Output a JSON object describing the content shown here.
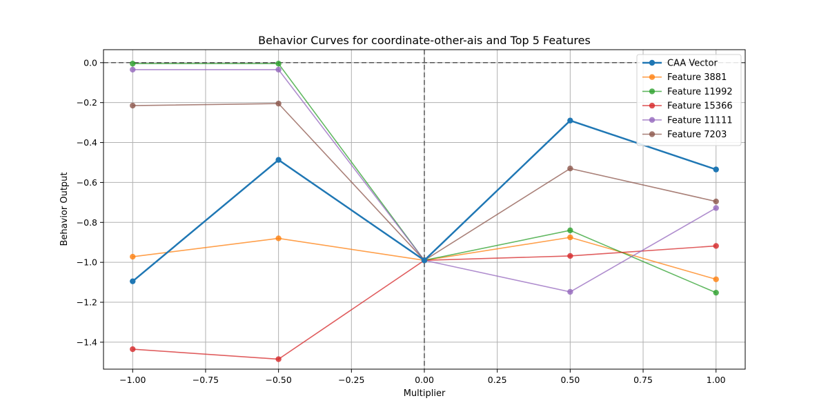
{
  "chart_data": {
    "type": "line",
    "title": "Behavior Curves for coordinate-other-ais and Top 5 Features",
    "xlabel": "Multiplier",
    "ylabel": "Behavior Output",
    "x": [
      -1.0,
      -0.5,
      0.0,
      0.5,
      1.0
    ],
    "xlim": [
      -1.1,
      1.1
    ],
    "ylim": [
      -1.535,
      0.065
    ],
    "xticks": [
      -1.0,
      -0.75,
      -0.5,
      -0.25,
      0.0,
      0.25,
      0.5,
      0.75,
      1.0
    ],
    "xtick_labels": [
      "−1.00",
      "−0.75",
      "−0.50",
      "−0.25",
      "0.00",
      "0.25",
      "0.50",
      "0.75",
      "1.00"
    ],
    "yticks": [
      0.0,
      -0.2,
      -0.4,
      -0.6,
      -0.8,
      -1.0,
      -1.2,
      -1.4
    ],
    "ytick_labels": [
      "0.0",
      "−0.2",
      "−0.4",
      "−0.6",
      "−0.8",
      "−1.0",
      "−1.2",
      "−1.4"
    ],
    "grid": true,
    "reference_lines": {
      "horizontal_y": 0.0,
      "vertical_x": 0.0
    },
    "legend_position": "top-right",
    "series": [
      {
        "name": "CAA Vector",
        "color": "#1f77b4",
        "emphasis": true,
        "values": [
          -1.095,
          -0.487,
          -0.99,
          -0.29,
          -0.535
        ]
      },
      {
        "name": "Feature 3881",
        "color": "#ff7f0e",
        "values": [
          -0.972,
          -0.88,
          -0.99,
          -0.875,
          -1.085
        ]
      },
      {
        "name": "Feature 11992",
        "color": "#2ca02c",
        "values": [
          -0.005,
          -0.005,
          -0.99,
          -0.84,
          -1.152
        ]
      },
      {
        "name": "Feature 15366",
        "color": "#d62728",
        "values": [
          -1.435,
          -1.485,
          -0.99,
          -0.968,
          -0.918
        ]
      },
      {
        "name": "Feature 11111",
        "color": "#9467bd",
        "values": [
          -0.035,
          -0.035,
          -0.99,
          -1.148,
          -0.728
        ]
      },
      {
        "name": "Feature 7203",
        "color": "#8c564b",
        "values": [
          -0.215,
          -0.205,
          -0.99,
          -0.53,
          -0.695
        ]
      }
    ]
  }
}
